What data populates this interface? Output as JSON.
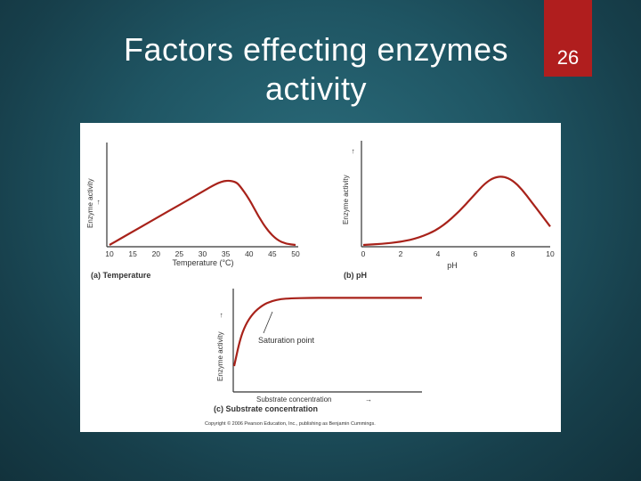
{
  "slide": {
    "title": "Factors effecting enzymes activity",
    "page_number": "26"
  },
  "colors": {
    "curve": "#a8221a",
    "axis": "#333333",
    "page_tab": "#b01e1e"
  },
  "copyright": "Copyright © 2006 Pearson Education, Inc., publishing as Benjamin Cummings.",
  "chart_data": [
    {
      "id": "temperature",
      "type": "line",
      "panel_label": "(a) Temperature",
      "xlabel": "Temperature (°C)",
      "ylabel": "Enzyme activity",
      "xlim": [
        10,
        50
      ],
      "ylim": [
        0,
        1
      ],
      "xticks": [
        10,
        15,
        20,
        25,
        30,
        35,
        40,
        45,
        50
      ],
      "series": [
        {
          "x": [
            10,
            15,
            20,
            25,
            30,
            33,
            35,
            37,
            38,
            40,
            42,
            44,
            46,
            48,
            50
          ],
          "y": [
            0.0,
            0.13,
            0.26,
            0.39,
            0.52,
            0.6,
            0.63,
            0.62,
            0.58,
            0.45,
            0.28,
            0.14,
            0.05,
            0.01,
            0.0
          ]
        }
      ]
    },
    {
      "id": "ph",
      "type": "line",
      "panel_label": "(b) pH",
      "xlabel": "pH",
      "ylabel": "Enzyme activity",
      "xlim": [
        0,
        10
      ],
      "ylim": [
        0,
        1
      ],
      "xticks": [
        0,
        2,
        4,
        6,
        8,
        10
      ],
      "series": [
        {
          "x": [
            0,
            1,
            2,
            3,
            4,
            5,
            6,
            6.5,
            7,
            7.5,
            8,
            8.5,
            9,
            9.5,
            10
          ],
          "y": [
            0.0,
            0.01,
            0.03,
            0.07,
            0.15,
            0.3,
            0.5,
            0.6,
            0.66,
            0.67,
            0.63,
            0.54,
            0.42,
            0.3,
            0.18
          ]
        }
      ]
    },
    {
      "id": "substrate",
      "type": "line",
      "panel_label": "(c) Substrate concentration",
      "xlabel": "Substrate concentration",
      "ylabel": "Enzyme activity",
      "annotation": "Saturation point",
      "xlim": [
        0,
        10
      ],
      "ylim": [
        0,
        1
      ],
      "xticks": [],
      "series": [
        {
          "x": [
            0,
            0.3,
            0.6,
            1,
            1.5,
            2,
            2.5,
            3,
            4,
            5,
            6,
            7,
            8,
            9,
            10
          ],
          "y": [
            0.25,
            0.5,
            0.65,
            0.76,
            0.84,
            0.88,
            0.9,
            0.905,
            0.91,
            0.91,
            0.91,
            0.91,
            0.91,
            0.91,
            0.91
          ]
        }
      ]
    }
  ]
}
